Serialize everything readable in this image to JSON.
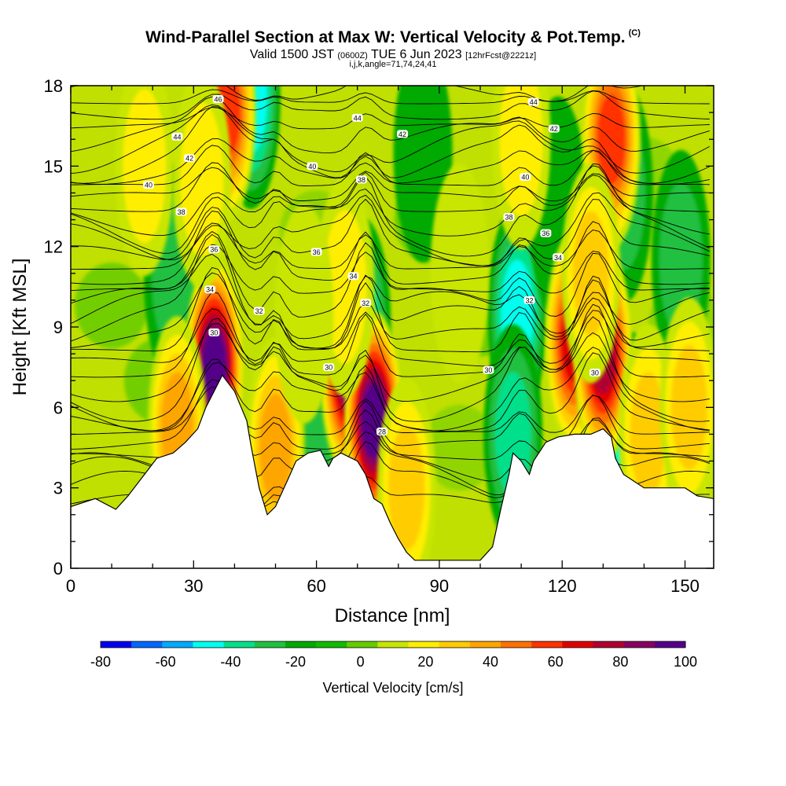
{
  "title": {
    "main": "Wind-Parallel Section at Max W: Vertical Velocity & Pot.Temp.",
    "copyright": "(C)",
    "valid_prefix": "Valid 1500 JST",
    "valid_utc": "(0600Z)",
    "valid_date": "TUE 6 Jun 2023",
    "forecast": "[12hrFcst@2221z]",
    "indices": "i,j,k,angle=71,74,24,41"
  },
  "chart_data": {
    "type": "heatmap",
    "xlabel": "Distance [nm]",
    "ylabel": "Height [Kft MSL]",
    "xlim": [
      0,
      157
    ],
    "ylim": [
      0,
      18
    ],
    "x_ticks": [
      0,
      30,
      60,
      90,
      120,
      150
    ],
    "y_ticks": [
      0,
      3,
      6,
      9,
      12,
      15,
      18
    ],
    "colorbar": {
      "label": "Vertical Velocity [cm/s]",
      "ticks": [
        -80,
        -60,
        -40,
        -20,
        0,
        20,
        40,
        60,
        80,
        100
      ],
      "levels": [
        -80,
        -70,
        -60,
        -50,
        -40,
        -30,
        -20,
        -10,
        0,
        10,
        20,
        30,
        40,
        50,
        60,
        70,
        80,
        90,
        100
      ],
      "colors": [
        "#0000f0",
        "#0066ff",
        "#00aaff",
        "#00ffee",
        "#00e08a",
        "#22c040",
        "#00aa00",
        "#11bb00",
        "#66cc00",
        "#c8e600",
        "#ffee00",
        "#ffcc00",
        "#ffa500",
        "#ff7000",
        "#ff3300",
        "#e00000",
        "#b00030",
        "#880060",
        "#550088"
      ]
    },
    "terrain": [
      [
        0,
        2.3
      ],
      [
        6,
        2.6
      ],
      [
        11,
        2.2
      ],
      [
        14,
        2.7
      ],
      [
        18,
        3.5
      ],
      [
        21,
        4.1
      ],
      [
        25,
        4.3
      ],
      [
        28,
        4.7
      ],
      [
        31,
        5.2
      ],
      [
        33,
        6.0
      ],
      [
        35,
        6.6
      ],
      [
        37,
        7.2
      ],
      [
        40,
        6.6
      ],
      [
        43,
        5.5
      ],
      [
        44,
        4.6
      ],
      [
        46,
        3.0
      ],
      [
        48,
        2.0
      ],
      [
        50,
        2.3
      ],
      [
        53,
        3.3
      ],
      [
        55,
        4.0
      ],
      [
        58,
        4.3
      ],
      [
        61,
        4.4
      ],
      [
        63,
        3.8
      ],
      [
        64,
        4.1
      ],
      [
        66,
        4.3
      ],
      [
        70,
        4.0
      ],
      [
        72,
        3.5
      ],
      [
        74,
        2.6
      ],
      [
        76,
        2.4
      ],
      [
        78,
        1.7
      ],
      [
        80,
        1.1
      ],
      [
        82,
        0.6
      ],
      [
        84,
        0.3
      ],
      [
        88,
        0.3
      ],
      [
        93,
        0.3
      ],
      [
        100,
        0.3
      ],
      [
        103,
        0.8
      ],
      [
        105,
        2.2
      ],
      [
        107,
        3.5
      ],
      [
        108,
        4.3
      ],
      [
        110,
        4.0
      ],
      [
        112,
        3.5
      ],
      [
        113,
        4.0
      ],
      [
        116,
        4.7
      ],
      [
        119,
        4.9
      ],
      [
        123,
        5.0
      ],
      [
        127,
        5.0
      ],
      [
        130,
        5.2
      ],
      [
        132,
        4.9
      ],
      [
        133,
        4.1
      ],
      [
        135,
        3.5
      ],
      [
        137,
        3.3
      ],
      [
        140,
        3.0
      ],
      [
        145,
        3.0
      ],
      [
        150,
        3.0
      ],
      [
        153,
        2.7
      ],
      [
        157,
        2.6
      ]
    ],
    "updraft_cores": [
      {
        "x": 35,
        "y": 7.5,
        "w": 100
      },
      {
        "x": 26,
        "y": 5.3,
        "w": 45
      },
      {
        "x": 38,
        "y": 17.0,
        "w": 60
      },
      {
        "x": 32,
        "y": 14.5,
        "w": 25
      },
      {
        "x": 18,
        "y": 15.0,
        "w": 28
      },
      {
        "x": 50,
        "y": 4.5,
        "w": 45
      },
      {
        "x": 68,
        "y": 7.5,
        "w": 90
      },
      {
        "x": 74,
        "y": 5.5,
        "w": 100
      },
      {
        "x": 67,
        "y": 10.5,
        "w": 22
      },
      {
        "x": 82,
        "y": 3.0,
        "w": 30
      },
      {
        "x": 123,
        "y": 8.5,
        "w": 70
      },
      {
        "x": 130,
        "y": 8.0,
        "w": 85
      },
      {
        "x": 132,
        "y": 16.0,
        "w": 65
      },
      {
        "x": 127,
        "y": 11.0,
        "w": 30
      },
      {
        "x": 110,
        "y": 16.0,
        "w": 25
      },
      {
        "x": 141,
        "y": 5.0,
        "w": 30
      },
      {
        "x": 151,
        "y": 6.0,
        "w": 35
      },
      {
        "x": 95,
        "y": 11.0,
        "w": 10
      },
      {
        "x": 57,
        "y": 9.5,
        "w": 12
      }
    ],
    "downdraft_cores": [
      {
        "x": 44,
        "y": 17.5,
        "w": -45
      },
      {
        "x": 71,
        "y": 9.0,
        "w": -30
      },
      {
        "x": 109,
        "y": 9.5,
        "w": -45
      },
      {
        "x": 137,
        "y": 4.7,
        "w": -45
      },
      {
        "x": 108,
        "y": 5.0,
        "w": -38
      },
      {
        "x": 135,
        "y": 14.0,
        "w": -25
      },
      {
        "x": 62,
        "y": 5.5,
        "w": -25
      },
      {
        "x": 149,
        "y": 11.5,
        "w": -25
      },
      {
        "x": 25,
        "y": 11.0,
        "w": -20
      },
      {
        "x": 86,
        "y": 15.5,
        "w": -18
      },
      {
        "x": 119,
        "y": 13.5,
        "w": -18
      }
    ],
    "theta_contour_labels": [
      {
        "text": "46",
        "x": 36,
        "y": 17.5
      },
      {
        "text": "44",
        "x": 26,
        "y": 16.1
      },
      {
        "text": "44",
        "x": 70,
        "y": 16.8
      },
      {
        "text": "44",
        "x": 113,
        "y": 17.4
      },
      {
        "text": "42",
        "x": 29,
        "y": 15.3
      },
      {
        "text": "42",
        "x": 81,
        "y": 16.2
      },
      {
        "text": "42",
        "x": 118,
        "y": 16.4
      },
      {
        "text": "40",
        "x": 19,
        "y": 14.3
      },
      {
        "text": "40",
        "x": 59,
        "y": 15.0
      },
      {
        "text": "40",
        "x": 111,
        "y": 14.6
      },
      {
        "text": "38",
        "x": 27,
        "y": 13.3
      },
      {
        "text": "38",
        "x": 71,
        "y": 14.5
      },
      {
        "text": "38",
        "x": 107,
        "y": 13.1
      },
      {
        "text": "36",
        "x": 35,
        "y": 11.9
      },
      {
        "text": "36",
        "x": 60,
        "y": 11.8
      },
      {
        "text": "36",
        "x": 116,
        "y": 12.5
      },
      {
        "text": "34",
        "x": 34,
        "y": 10.4
      },
      {
        "text": "34",
        "x": 69,
        "y": 10.9
      },
      {
        "text": "34",
        "x": 119,
        "y": 11.6
      },
      {
        "text": "32",
        "x": 46,
        "y": 9.6
      },
      {
        "text": "32",
        "x": 72,
        "y": 9.9
      },
      {
        "text": "32",
        "x": 112,
        "y": 10.0
      },
      {
        "text": "30",
        "x": 35,
        "y": 8.8
      },
      {
        "text": "30",
        "x": 63,
        "y": 7.5
      },
      {
        "text": "30",
        "x": 102,
        "y": 7.4
      },
      {
        "text": "30",
        "x": 128,
        "y": 7.3
      },
      {
        "text": "28",
        "x": 76,
        "y": 5.1
      }
    ]
  }
}
